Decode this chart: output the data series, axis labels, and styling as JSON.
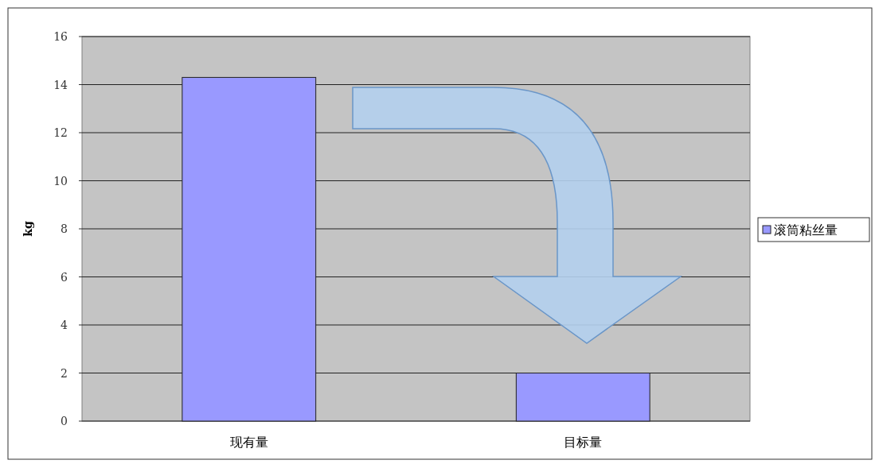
{
  "chart_data": {
    "type": "bar",
    "ylabel": "kg",
    "categories": [
      "现有量",
      "目标量"
    ],
    "series": [
      {
        "name": "滚筒粘丝量",
        "color": "#9999ff",
        "values": [
          14.3,
          2
        ]
      }
    ],
    "ylim": [
      0,
      16
    ],
    "yticks": [
      0,
      2,
      4,
      6,
      8,
      10,
      12,
      14,
      16
    ],
    "grid": "y",
    "legend": "right"
  }
}
